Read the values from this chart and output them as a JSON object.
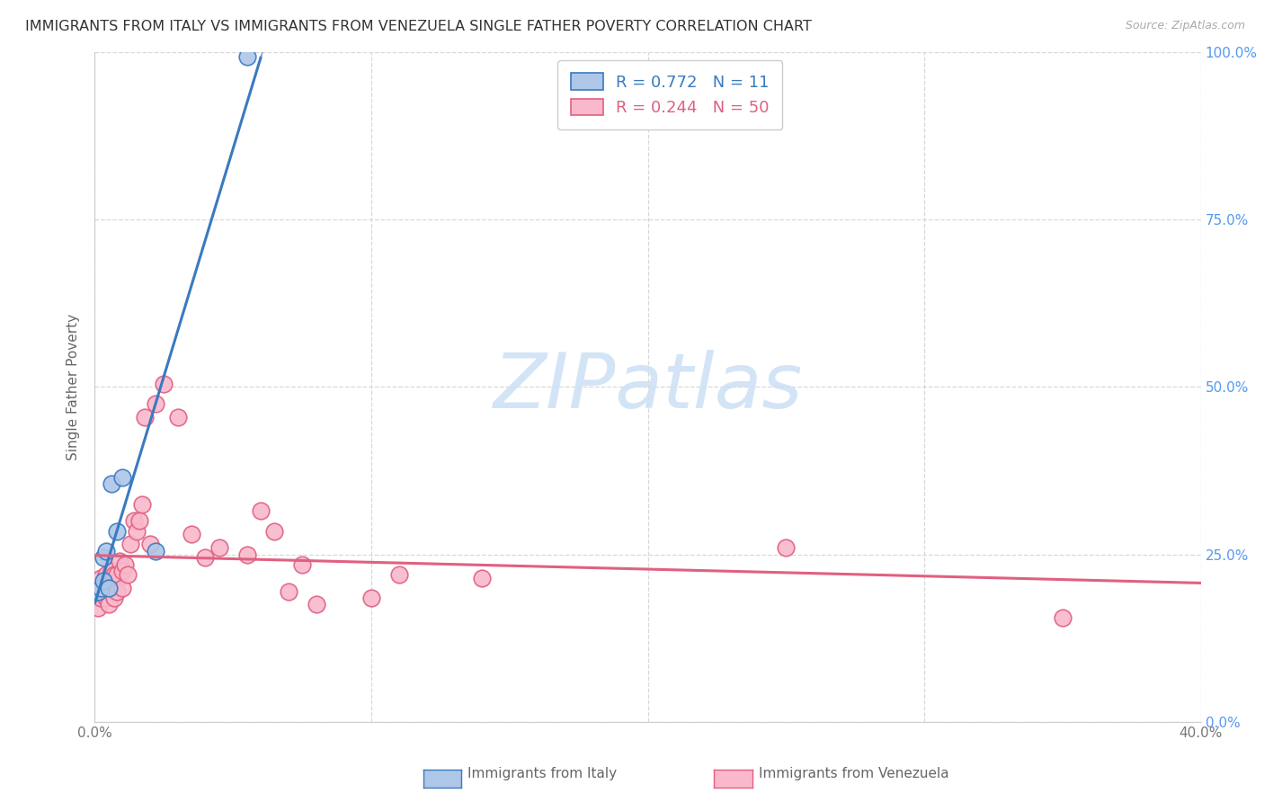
{
  "title": "IMMIGRANTS FROM ITALY VS IMMIGRANTS FROM VENEZUELA SINGLE FATHER POVERTY CORRELATION CHART",
  "source": "Source: ZipAtlas.com",
  "ylabel": "Single Father Poverty",
  "italy_color": "#aec6e8",
  "italy_line_color": "#3a7abf",
  "venezuela_color": "#f9b8cb",
  "venezuela_line_color": "#e06080",
  "italy_R": 0.772,
  "italy_N": 11,
  "venezuela_R": 0.244,
  "venezuela_N": 50,
  "italy_scatter_x": [
    0.001,
    0.002,
    0.003,
    0.003,
    0.004,
    0.005,
    0.006,
    0.008,
    0.01,
    0.022,
    0.055
  ],
  "italy_scatter_y": [
    0.195,
    0.2,
    0.21,
    0.245,
    0.255,
    0.2,
    0.355,
    0.285,
    0.365,
    0.255,
    0.993
  ],
  "venezuela_scatter_x": [
    0.001,
    0.001,
    0.002,
    0.002,
    0.002,
    0.003,
    0.003,
    0.004,
    0.004,
    0.004,
    0.005,
    0.005,
    0.005,
    0.006,
    0.006,
    0.007,
    0.007,
    0.007,
    0.008,
    0.008,
    0.008,
    0.009,
    0.01,
    0.01,
    0.011,
    0.012,
    0.013,
    0.014,
    0.015,
    0.016,
    0.017,
    0.018,
    0.02,
    0.022,
    0.025,
    0.03,
    0.035,
    0.04,
    0.045,
    0.055,
    0.06,
    0.065,
    0.07,
    0.075,
    0.08,
    0.1,
    0.11,
    0.14,
    0.25,
    0.35
  ],
  "venezuela_scatter_y": [
    0.17,
    0.195,
    0.185,
    0.2,
    0.215,
    0.19,
    0.205,
    0.185,
    0.21,
    0.22,
    0.195,
    0.205,
    0.175,
    0.205,
    0.225,
    0.205,
    0.22,
    0.185,
    0.21,
    0.195,
    0.22,
    0.24,
    0.225,
    0.2,
    0.235,
    0.22,
    0.265,
    0.3,
    0.285,
    0.3,
    0.325,
    0.455,
    0.265,
    0.475,
    0.505,
    0.455,
    0.28,
    0.245,
    0.26,
    0.25,
    0.315,
    0.285,
    0.195,
    0.235,
    0.175,
    0.185,
    0.22,
    0.215,
    0.26,
    0.155
  ],
  "xlim": [
    0.0,
    0.4
  ],
  "ylim": [
    0.0,
    1.0
  ],
  "xticks": [
    0.0,
    0.1,
    0.2,
    0.3,
    0.4
  ],
  "yticks": [
    0.0,
    0.25,
    0.5,
    0.75,
    1.0
  ],
  "right_ytick_labels": [
    "0.0%",
    "25.0%",
    "50.0%",
    "75.0%",
    "100.0%"
  ],
  "background_color": "#ffffff",
  "grid_color": "#d8d8d8",
  "watermark_text": "ZIPatlas",
  "watermark_color": "#ddeeff",
  "bottom_label_italy": "Immigrants from Italy",
  "bottom_label_venezuela": "Immigrants from Venezuela"
}
